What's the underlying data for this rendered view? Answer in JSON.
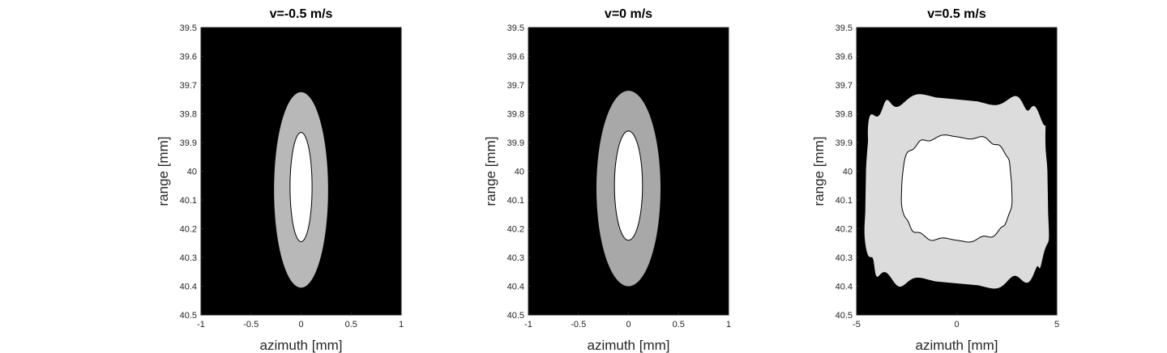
{
  "chart_data": [
    {
      "type": "heatmap",
      "title": "v=-0.5 m/s",
      "xlabel": "azimuth [mm]",
      "ylabel": "range [mm]",
      "xlim": [
        -1,
        1
      ],
      "ylim": [
        39.5,
        40.5
      ],
      "y_reversed": true,
      "x_ticks": [
        -1,
        -0.5,
        0,
        0.5,
        1
      ],
      "x_tick_labels": [
        "-1",
        "-0.5",
        "0",
        "0.5",
        "1"
      ],
      "y_ticks": [
        39.5,
        39.6,
        39.7,
        39.8,
        39.9,
        40,
        40.1,
        40.2,
        40.3,
        40.4,
        40.5
      ],
      "y_tick_labels": [
        "39.5",
        "39.6",
        "39.7",
        "39.8",
        "39.9",
        "40",
        "40.1",
        "40.2",
        "40.3",
        "40.4",
        "40.5"
      ],
      "background_color": "#000000",
      "regions": [
        {
          "shape": "ellipse",
          "center": [
            0,
            40.065
          ],
          "radius_x": 0.27,
          "radius_y": 0.34,
          "fill": "#b8b8b8",
          "outline": false
        },
        {
          "shape": "ellipse",
          "center": [
            0,
            40.055
          ],
          "radius_x": 0.11,
          "radius_y": 0.19,
          "fill": "#ffffff",
          "outline": true
        }
      ]
    },
    {
      "type": "heatmap",
      "title": "v=0 m/s",
      "xlabel": "azimuth [mm]",
      "ylabel": "range [mm]",
      "xlim": [
        -1,
        1
      ],
      "ylim": [
        39.5,
        40.5
      ],
      "y_reversed": true,
      "x_ticks": [
        -1,
        -0.5,
        0,
        0.5,
        1
      ],
      "x_tick_labels": [
        "-1",
        "-0.5",
        "0",
        "0.5",
        "1"
      ],
      "y_ticks": [
        39.5,
        39.6,
        39.7,
        39.8,
        39.9,
        40,
        40.1,
        40.2,
        40.3,
        40.4,
        40.5
      ],
      "y_tick_labels": [
        "39.5",
        "39.6",
        "39.7",
        "39.8",
        "39.9",
        "40",
        "40.1",
        "40.2",
        "40.3",
        "40.4",
        "40.5"
      ],
      "background_color": "#000000",
      "regions": [
        {
          "shape": "ellipse",
          "center": [
            0,
            40.06
          ],
          "radius_x": 0.32,
          "radius_y": 0.34,
          "fill": "#a8a8a8",
          "outline": false
        },
        {
          "shape": "ellipse",
          "center": [
            0,
            40.05
          ],
          "radius_x": 0.14,
          "radius_y": 0.19,
          "fill": "#ffffff",
          "outline": true
        }
      ]
    },
    {
      "type": "heatmap",
      "title": "v=0.5 m/s",
      "xlabel": "azimuth [mm]",
      "ylabel": "range [mm]",
      "xlim": [
        -5,
        5
      ],
      "ylim": [
        39.5,
        40.5
      ],
      "y_reversed": true,
      "x_ticks": [
        -5,
        0,
        5
      ],
      "x_tick_labels": [
        "-5",
        "0",
        "5"
      ],
      "y_ticks": [
        39.5,
        39.6,
        39.7,
        39.8,
        39.9,
        40,
        40.1,
        40.2,
        40.3,
        40.4,
        40.5
      ],
      "y_tick_labels": [
        "39.5",
        "39.6",
        "39.7",
        "39.8",
        "39.9",
        "40",
        "40.1",
        "40.2",
        "40.3",
        "40.4",
        "40.5"
      ],
      "background_color": "#000000",
      "regions": [
        {
          "shape": "superellipse",
          "center": [
            0,
            40.07
          ],
          "radius_x": 4.55,
          "radius_y": 0.32,
          "exponent": 5,
          "ripple": 0.006,
          "fill": "#dcdcdc",
          "outline": false
        },
        {
          "shape": "superellipse",
          "center": [
            0,
            40.06
          ],
          "radius_x": 2.75,
          "radius_y": 0.18,
          "exponent": 3,
          "ripple": 0.004,
          "fill": "#ffffff",
          "outline": true
        }
      ]
    }
  ]
}
